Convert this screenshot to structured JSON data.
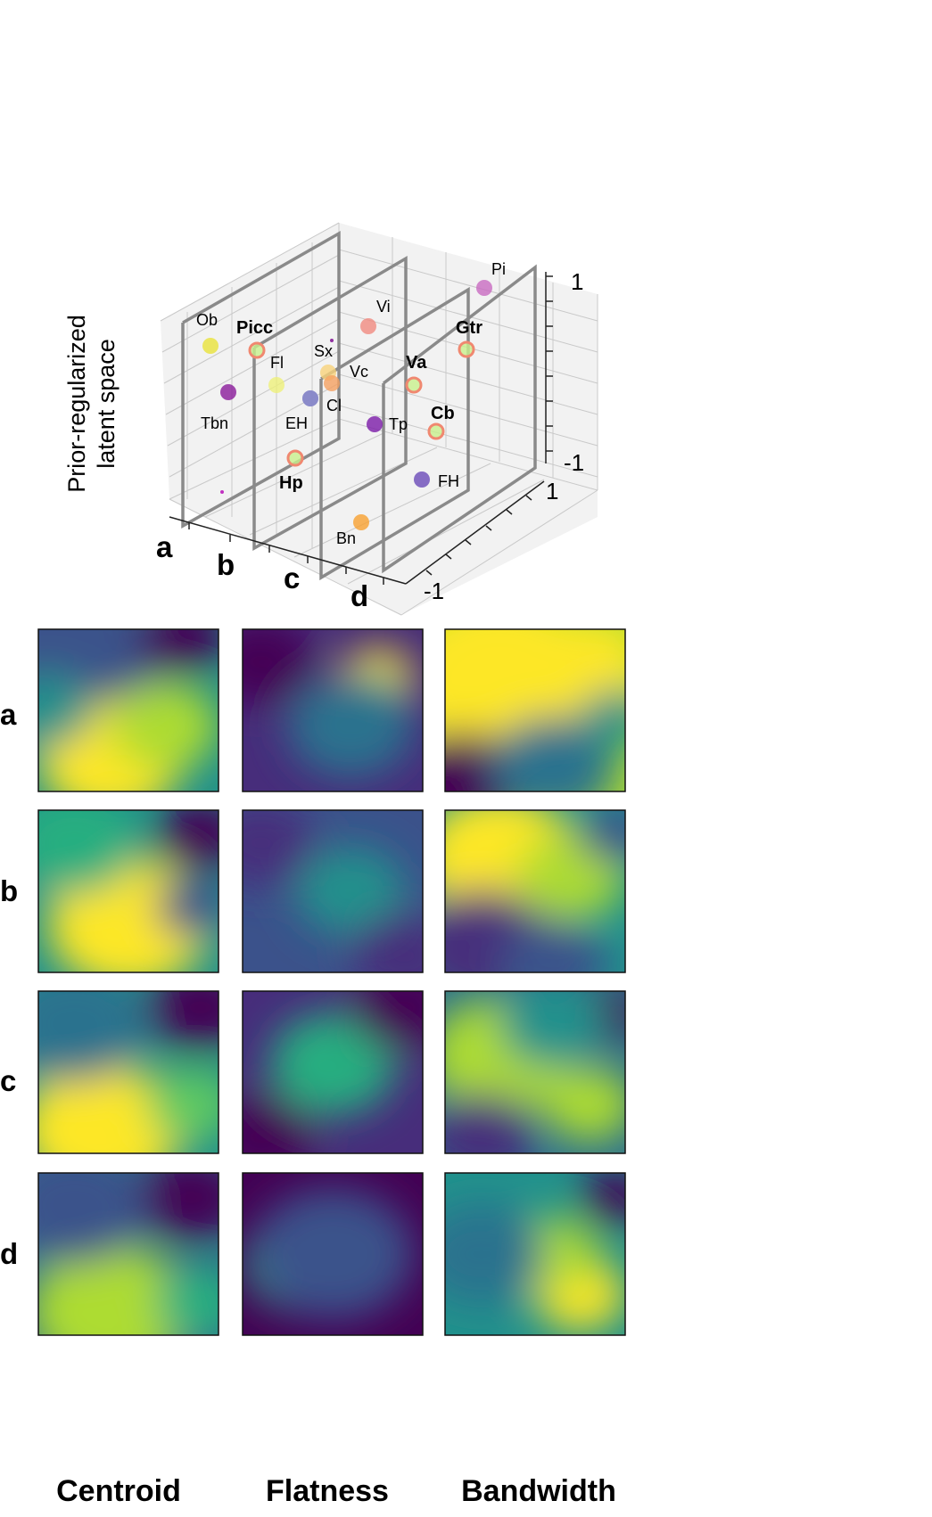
{
  "latent_plot": {
    "ylabel_line1": "Prior-regularized",
    "ylabel_line2": "latent space",
    "axis_ticks": {
      "vertical_top": "1",
      "vertical_bottom": "-1",
      "depth_near": "-1",
      "depth_far": "1"
    },
    "slice_labels": [
      "a",
      "b",
      "c",
      "d"
    ]
  },
  "chart_data": [
    {
      "type": "scatter",
      "title": "",
      "zlim": [
        -1,
        1
      ],
      "ylim": [
        -1,
        1
      ],
      "grid": true,
      "points": [
        {
          "label": "Ob",
          "bold": false,
          "color": "#e8e23a",
          "ring": false
        },
        {
          "label": "Picc",
          "bold": true,
          "color": "#c8f08c",
          "ring": true
        },
        {
          "label": "Fl",
          "bold": false,
          "color": "#eef07a",
          "ring": false
        },
        {
          "label": "Tbn",
          "bold": false,
          "color": "#8a1a9a",
          "ring": false
        },
        {
          "label": "Sx",
          "bold": false,
          "color": "#f7d27a",
          "ring": false
        },
        {
          "label": "Vi",
          "bold": false,
          "color": "#f08a80",
          "ring": false
        },
        {
          "label": "Vc",
          "bold": false,
          "color": "#f4a060",
          "ring": false
        },
        {
          "label": "Cl",
          "bold": false,
          "color": "#7a7ac8",
          "ring": false
        },
        {
          "label": "EH",
          "bold": false,
          "color": "#8a8ac8",
          "ring": false
        },
        {
          "label": "Tp",
          "bold": false,
          "color": "#7a1aa8",
          "ring": false
        },
        {
          "label": "Va",
          "bold": true,
          "color": "#c8f08c",
          "ring": true
        },
        {
          "label": "Gtr",
          "bold": true,
          "color": "#c8f08c",
          "ring": true
        },
        {
          "label": "Pi",
          "bold": false,
          "color": "#c86ac0",
          "ring": false
        },
        {
          "label": "Cb",
          "bold": true,
          "color": "#c8f08c",
          "ring": true
        },
        {
          "label": "FH",
          "bold": false,
          "color": "#6a4ab8",
          "ring": false
        },
        {
          "label": "Hp",
          "bold": true,
          "color": "#c8f08c",
          "ring": true
        },
        {
          "label": "Bn",
          "bold": false,
          "color": "#f8a030",
          "ring": false
        }
      ],
      "ring_color": "#f08870"
    },
    {
      "type": "heatmap",
      "colormap": "viridis",
      "rows": [
        "a",
        "b",
        "c",
        "d"
      ],
      "columns": [
        "Centroid",
        "Flatness",
        "Bandwidth"
      ]
    }
  ],
  "heatmaps": {
    "rows": [
      "a",
      "b",
      "c",
      "d"
    ],
    "columns": [
      "Centroid",
      "Flatness",
      "Bandwidth"
    ]
  }
}
